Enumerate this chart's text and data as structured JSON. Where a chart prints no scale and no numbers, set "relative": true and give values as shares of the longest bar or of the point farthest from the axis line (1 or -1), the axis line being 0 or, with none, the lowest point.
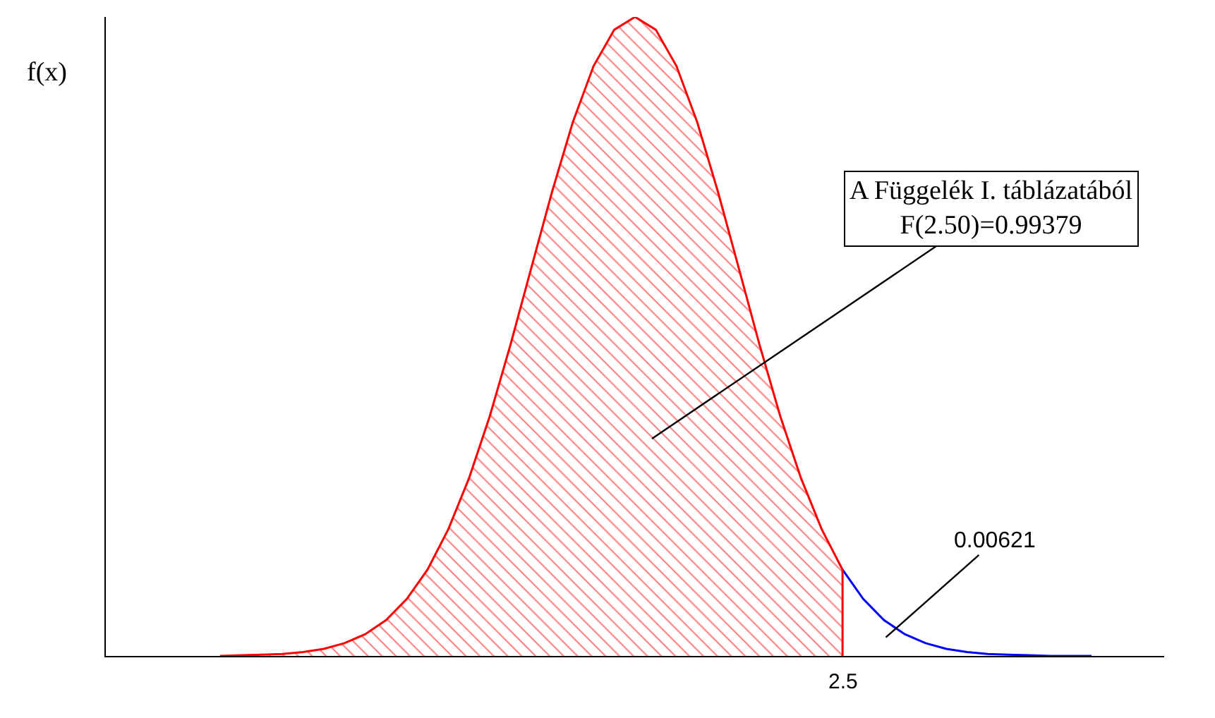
{
  "chart_data": {
    "type": "area",
    "relative": true,
    "ylabel": "f(x)",
    "marker": "none",
    "categories": [
      null,
      null,
      null,
      null,
      null,
      null,
      null,
      null,
      null,
      null,
      null,
      null,
      null,
      null,
      null,
      null,
      null,
      null,
      null,
      null,
      null,
      null,
      null,
      null,
      null,
      null,
      null,
      null,
      null,
      null,
      null,
      null,
      null,
      null,
      null,
      null,
      null,
      null,
      null,
      null,
      null,
      null,
      null,
      null,
      null,
      null,
      null,
      null,
      null,
      null,
      null
    ],
    "series": [
      {
        "color": "#ff0000",
        "values": [
          null,
          null,
          null,
          null,
          null,
          0,
          0.001,
          0.002,
          0.003,
          0.006,
          0.011,
          0.02,
          0.034,
          0.056,
          0.089,
          0.135,
          0.198,
          0.278,
          0.375,
          0.487,
          0.607,
          0.726,
          0.835,
          0.923,
          0.98,
          1,
          0.98,
          0.923,
          0.835,
          0.726,
          0.607,
          0.487,
          0.375,
          0.278,
          0.198,
          0.135,
          null,
          null,
          null,
          null,
          null,
          null,
          null,
          null,
          null,
          null,
          null,
          null,
          null,
          null,
          null
        ]
      },
      {
        "type": "line",
        "color": "#0000ff",
        "values": [
          null,
          null,
          null,
          null,
          null,
          null,
          null,
          null,
          null,
          null,
          null,
          null,
          null,
          null,
          null,
          null,
          null,
          null,
          null,
          null,
          null,
          null,
          null,
          null,
          null,
          null,
          null,
          null,
          null,
          null,
          null,
          null,
          null,
          null,
          null,
          0.135,
          0.089,
          0.056,
          0.034,
          0.02,
          0.011,
          0.006,
          0.003,
          0.002,
          0.001,
          0,
          0,
          0,
          null,
          null,
          null
        ]
      }
    ],
    "annotations": [
      "A Függelék I. táblázatából\nF(2.50)=0.99379",
      "0.00621",
      "2.5"
    ]
  }
}
